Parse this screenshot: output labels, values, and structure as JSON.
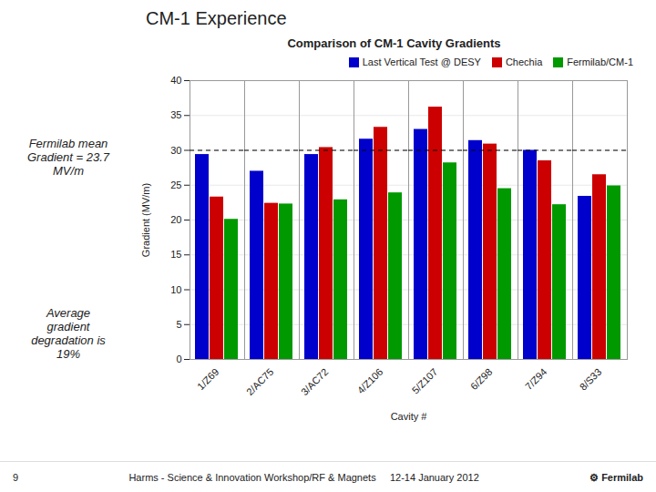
{
  "chart_data": {
    "type": "bar",
    "title": "Comparison of CM-1 Cavity Gradients",
    "xlabel": "Cavity #",
    "ylabel": "Gradient (MV/m)",
    "categories": [
      "1/Z69",
      "2/AC75",
      "3/AC72",
      "4/Z106",
      "5/Z107",
      "6/Z98",
      "7/Z94",
      "8/S33"
    ],
    "series": [
      {
        "name": "Last Vertical Test @ DESY",
        "color": "#0000CC",
        "values": [
          29.4,
          27.0,
          29.4,
          31.6,
          33.0,
          31.4,
          30.0,
          23.4
        ]
      },
      {
        "name": "Chechia",
        "color": "#CC0000",
        "values": [
          23.3,
          22.4,
          30.4,
          33.3,
          36.2,
          30.9,
          28.5,
          26.5
        ]
      },
      {
        "name": "Fermilab/CM-1",
        "color": "#009900",
        "values": [
          20.1,
          22.3,
          22.9,
          23.9,
          28.2,
          24.5,
          22.2,
          24.9
        ]
      }
    ],
    "ylim": [
      0,
      40
    ],
    "yticks": [
      0,
      5,
      10,
      15,
      20,
      25,
      30,
      35,
      40
    ],
    "grid": true,
    "legend": "upper right",
    "reference_lines": [
      {
        "y": 30.0,
        "line_style": "dashed"
      }
    ],
    "annotations": [
      "CM-1 Experience",
      "Fermilab mean\nGradient = 23.7\nMV/m",
      "Average\ngradient\ndegradation is\n19%",
      "9",
      "Harms - Science & Innovation Workshop/RF & Magnets     12-14 January 2012",
      "⚙ Fermilab"
    ]
  }
}
